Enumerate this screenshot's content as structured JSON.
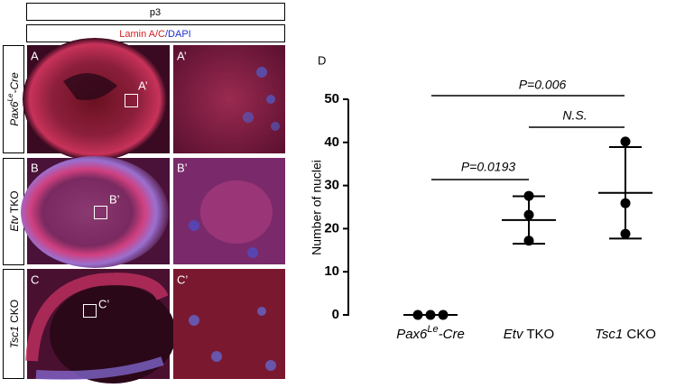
{
  "figure": {
    "header": "p3",
    "stain": {
      "red": "Lamin A/C",
      "blue": "/DAPI"
    },
    "rows": [
      {
        "italic": "Pax6",
        "sup": "Le",
        "rest": "-Cre"
      },
      {
        "italic": "Etv",
        "rest": " TKO"
      },
      {
        "italic": "Tsc1",
        "rest": " CKO"
      }
    ],
    "panel_labels": [
      [
        "A",
        "A’"
      ],
      [
        "B",
        "B’"
      ],
      [
        "C",
        "C’"
      ]
    ],
    "inset_labels": [
      "A’",
      "B’",
      "C’"
    ],
    "chart_label": "D"
  },
  "chart_data": {
    "type": "dot",
    "ylabel": "Number of nuclei",
    "categories": [
      {
        "italic": "Pax6",
        "sup": "Le",
        "rest": "-Cre"
      },
      {
        "italic": "Etv",
        "rest": " TKO"
      },
      {
        "italic": "Tsc1",
        "rest": " CKO"
      }
    ],
    "values": [
      [
        0,
        0,
        0
      ],
      [
        27.6,
        23.2,
        17.2
      ],
      [
        40.2,
        25.9,
        18.8
      ]
    ],
    "means": [
      0,
      22,
      28.3
    ],
    "sd": [
      0,
      5.5,
      10.6
    ],
    "ylim": [
      0,
      50
    ],
    "yticks": [
      0,
      10,
      20,
      30,
      40,
      50
    ],
    "color": "#000000",
    "annotations": [
      "P=0.006",
      "N.S.",
      "P=0.0193"
    ]
  }
}
